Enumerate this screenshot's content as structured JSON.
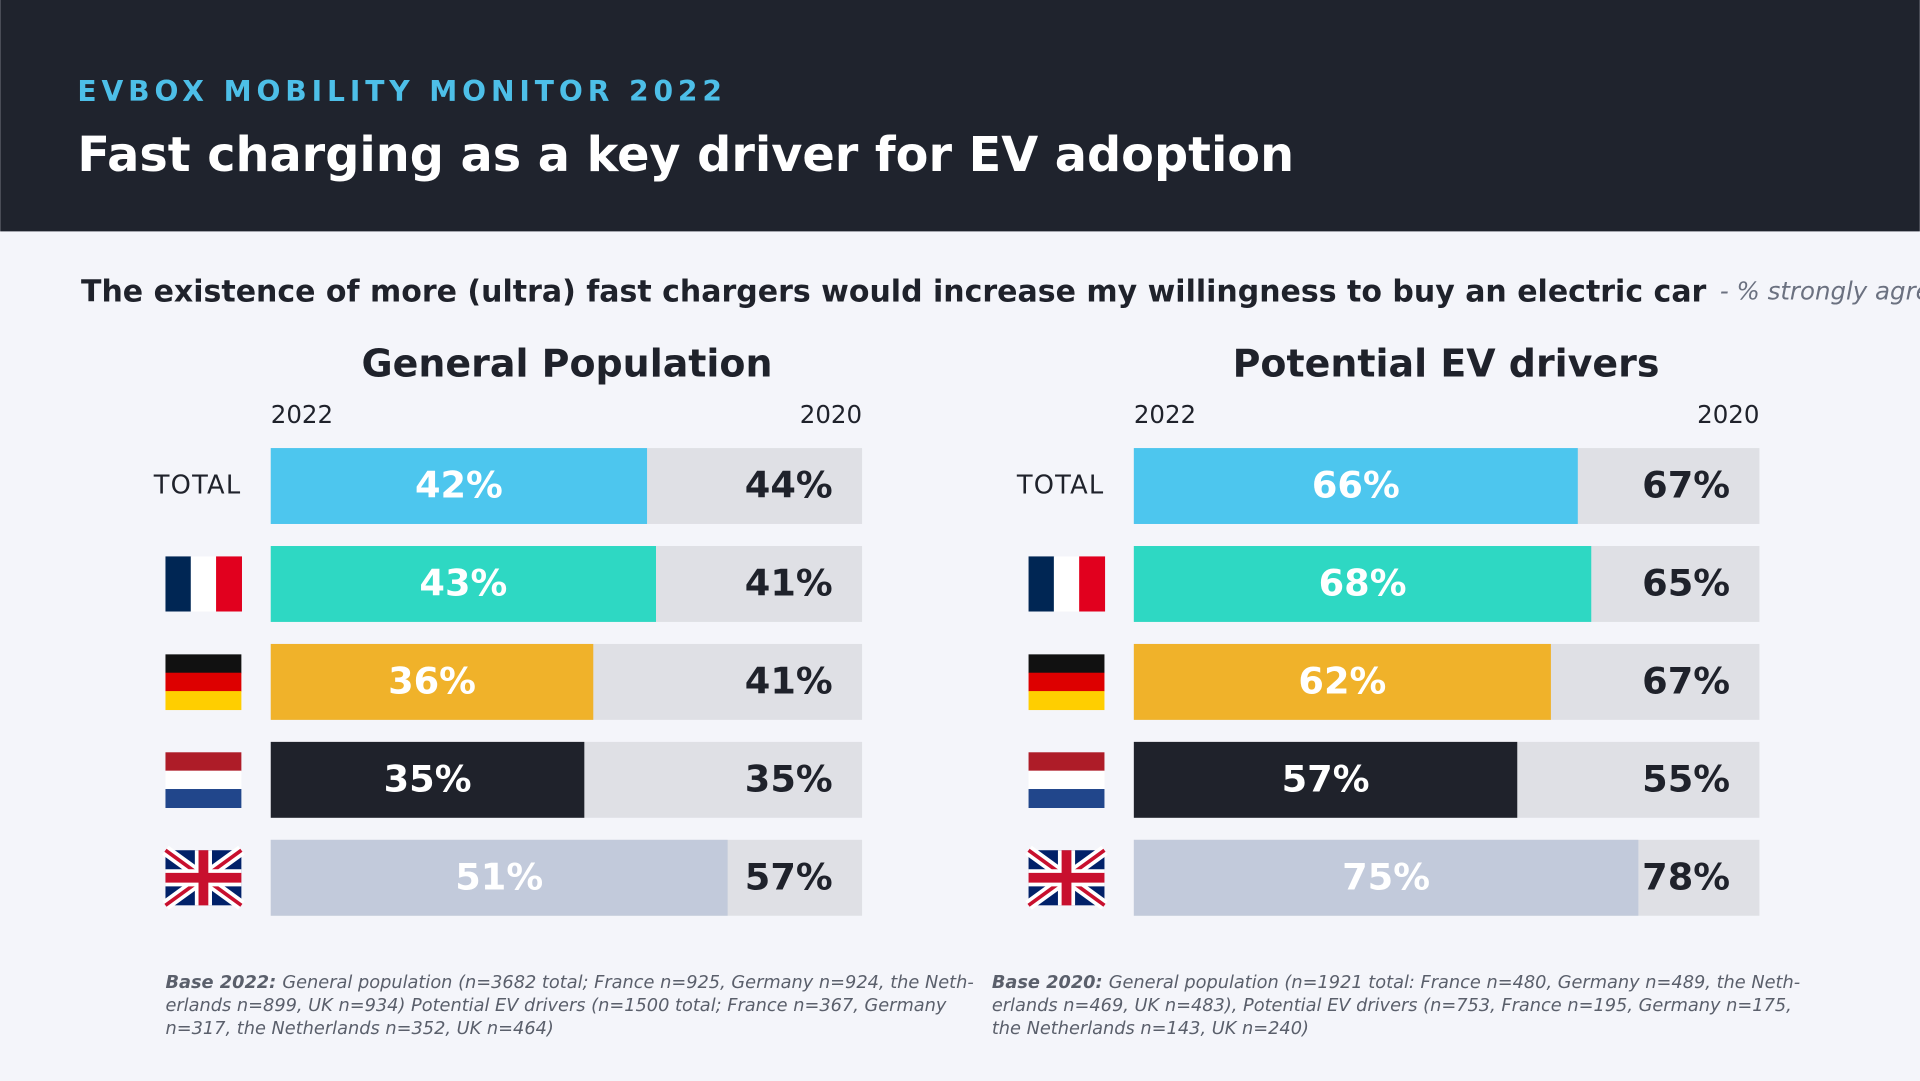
{
  "header": {
    "kicker": "EVBOX MOBILITY MONITOR 2022",
    "title": "Fast charging as a key driver for EV adoption"
  },
  "subtitle": "The existence of more (ultra) fast chargers would increase my willingness to buy an electric car",
  "subtitle_note": "- % strongly agree",
  "chart_data": [
    {
      "type": "bar",
      "orientation": "horizontal",
      "title": "General Population",
      "categories": [
        "TOTAL",
        null,
        null,
        null,
        null
      ],
      "xlim": [
        0,
        66
      ],
      "series": [
        {
          "name": "2022",
          "colors": [
            "#4dc6ee",
            "#2ed8c3",
            "#f0b22a",
            "#1f222b",
            "#c2cadb"
          ],
          "values": [
            42,
            43,
            36,
            35,
            51
          ],
          "value_labels": [
            "42%",
            "43%",
            "36%",
            "35%",
            "51%"
          ]
        },
        {
          "name": "2020",
          "values": [
            44,
            41,
            41,
            35,
            57
          ],
          "value_labels": [
            "44%",
            "41%",
            "41%",
            "35%",
            "57%"
          ]
        }
      ]
    },
    {
      "type": "bar",
      "orientation": "horizontal",
      "title": "Potential EV drivers",
      "categories": [
        "TOTAL",
        null,
        null,
        null,
        null
      ],
      "xlim": [
        0,
        93
      ],
      "series": [
        {
          "name": "2022",
          "colors": [
            "#4dc6ee",
            "#2ed8c3",
            "#f0b22a",
            "#1f222b",
            "#c2cadb"
          ],
          "values": [
            66,
            68,
            62,
            57,
            75
          ],
          "value_labels": [
            "66%",
            "68%",
            "62%",
            "57%",
            "75%"
          ]
        },
        {
          "name": "2020",
          "values": [
            67,
            65,
            67,
            55,
            78
          ],
          "value_labels": [
            "67%",
            "65%",
            "67%",
            "55%",
            "78%"
          ]
        }
      ]
    }
  ],
  "notes": [
    {
      "label": "Base 2022:",
      "lines": [
        "General population (n=3682 total; France n=925, Germany n=924, the Neth-",
        "erlands n=899, UK n=934) Potential EV drivers (n=1500 total; France n=367, Germany",
        "n=317, the Netherlands n=352, UK n=464)"
      ]
    },
    {
      "label": "Base 2020:",
      "lines": [
        "General population (n=1921 total: France n=480, Germany n=489, the Neth-",
        "erlands n=469, UK n=483), Potential EV drivers (n=753, France n=195, Germany n=175,",
        "the Netherlands n=143, UK n=240)"
      ]
    }
  ]
}
